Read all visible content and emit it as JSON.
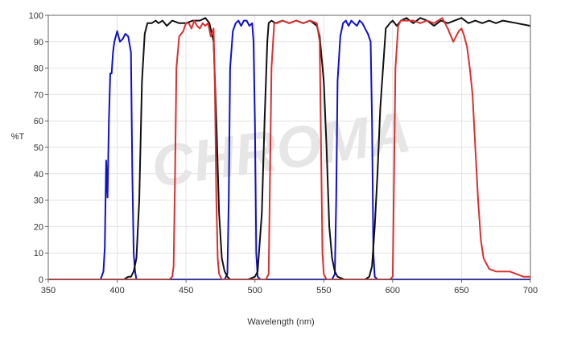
{
  "chart_data": {
    "type": "line",
    "watermark": "CHROMA",
    "xlabel": "Wavelength (nm)",
    "ylabel": "%T",
    "xlim": [
      350,
      700
    ],
    "ylim": [
      0,
      100
    ],
    "x_ticks": [
      350,
      400,
      450,
      500,
      550,
      600,
      650,
      700
    ],
    "y_ticks": [
      0,
      10,
      20,
      30,
      40,
      50,
      60,
      70,
      80,
      90,
      100
    ],
    "grid": true,
    "legend": "none",
    "series": [
      {
        "color": "#1010cc",
        "points": [
          [
            350,
            0
          ],
          [
            388,
            0
          ],
          [
            390,
            3
          ],
          [
            391,
            12
          ],
          [
            392,
            45
          ],
          [
            393,
            31
          ],
          [
            394,
            60
          ],
          [
            395,
            78
          ],
          [
            396,
            78
          ],
          [
            397,
            86
          ],
          [
            398,
            90
          ],
          [
            400,
            94
          ],
          [
            402,
            90
          ],
          [
            404,
            91
          ],
          [
            406,
            93
          ],
          [
            408,
            92
          ],
          [
            410,
            86
          ],
          [
            411,
            40
          ],
          [
            412,
            10
          ],
          [
            413,
            3
          ],
          [
            414,
            0
          ],
          [
            478,
            0
          ],
          [
            480,
            2
          ],
          [
            481,
            30
          ],
          [
            482,
            80
          ],
          [
            484,
            94
          ],
          [
            486,
            97
          ],
          [
            488,
            98
          ],
          [
            490,
            96
          ],
          [
            492,
            98
          ],
          [
            494,
            98
          ],
          [
            496,
            96
          ],
          [
            498,
            97
          ],
          [
            499,
            90
          ],
          [
            500,
            60
          ],
          [
            501,
            10
          ],
          [
            502,
            1
          ],
          [
            504,
            0
          ],
          [
            556,
            0
          ],
          [
            558,
            2
          ],
          [
            559,
            30
          ],
          [
            560,
            75
          ],
          [
            562,
            92
          ],
          [
            564,
            97
          ],
          [
            566,
            98
          ],
          [
            568,
            96
          ],
          [
            570,
            98
          ],
          [
            572,
            97
          ],
          [
            574,
            96
          ],
          [
            576,
            98
          ],
          [
            578,
            97
          ],
          [
            580,
            95
          ],
          [
            582,
            93
          ],
          [
            584,
            90
          ],
          [
            585,
            60
          ],
          [
            586,
            10
          ],
          [
            587,
            1
          ],
          [
            589,
            0
          ],
          [
            700,
            0
          ]
        ]
      },
      {
        "color": "#111111",
        "points": [
          [
            350,
            0
          ],
          [
            405,
            0
          ],
          [
            408,
            1
          ],
          [
            410,
            1
          ],
          [
            412,
            3
          ],
          [
            414,
            8
          ],
          [
            416,
            30
          ],
          [
            418,
            75
          ],
          [
            420,
            93
          ],
          [
            422,
            97
          ],
          [
            425,
            97
          ],
          [
            428,
            98
          ],
          [
            430,
            97
          ],
          [
            433,
            98
          ],
          [
            436,
            96
          ],
          [
            440,
            98
          ],
          [
            445,
            97
          ],
          [
            450,
            97
          ],
          [
            455,
            98
          ],
          [
            460,
            98
          ],
          [
            464,
            99
          ],
          [
            467,
            97
          ],
          [
            470,
            90
          ],
          [
            472,
            60
          ],
          [
            474,
            25
          ],
          [
            476,
            8
          ],
          [
            478,
            3
          ],
          [
            480,
            1
          ],
          [
            482,
            0
          ],
          [
            495,
            0
          ],
          [
            500,
            1
          ],
          [
            502,
            3
          ],
          [
            505,
            25
          ],
          [
            507,
            60
          ],
          [
            509,
            90
          ],
          [
            510,
            97
          ],
          [
            512,
            98
          ],
          [
            515,
            97
          ],
          [
            520,
            98
          ],
          [
            525,
            97
          ],
          [
            530,
            98
          ],
          [
            535,
            97
          ],
          [
            540,
            98
          ],
          [
            545,
            96
          ],
          [
            547,
            92
          ],
          [
            550,
            75
          ],
          [
            552,
            50
          ],
          [
            554,
            20
          ],
          [
            556,
            8
          ],
          [
            558,
            3
          ],
          [
            560,
            1
          ],
          [
            565,
            0
          ],
          [
            580,
            0
          ],
          [
            583,
            1
          ],
          [
            585,
            5
          ],
          [
            587,
            20
          ],
          [
            589,
            40
          ],
          [
            591,
            65
          ],
          [
            593,
            80
          ],
          [
            595,
            95
          ],
          [
            598,
            97
          ],
          [
            600,
            98
          ],
          [
            603,
            96
          ],
          [
            606,
            98
          ],
          [
            610,
            99
          ],
          [
            615,
            97
          ],
          [
            620,
            99
          ],
          [
            625,
            98
          ],
          [
            630,
            96
          ],
          [
            635,
            98
          ],
          [
            640,
            97
          ],
          [
            645,
            98
          ],
          [
            650,
            99
          ],
          [
            655,
            97
          ],
          [
            660,
            98
          ],
          [
            665,
            97
          ],
          [
            670,
            98
          ],
          [
            675,
            97
          ],
          [
            680,
            98
          ],
          [
            690,
            97
          ],
          [
            700,
            96
          ]
        ]
      },
      {
        "color": "#d93030",
        "points": [
          [
            350,
            0
          ],
          [
            438,
            0
          ],
          [
            440,
            1
          ],
          [
            441,
            5
          ],
          [
            442,
            40
          ],
          [
            443,
            80
          ],
          [
            445,
            92
          ],
          [
            448,
            94
          ],
          [
            450,
            97
          ],
          [
            452,
            97
          ],
          [
            454,
            95
          ],
          [
            456,
            98
          ],
          [
            458,
            96
          ],
          [
            460,
            95
          ],
          [
            462,
            97
          ],
          [
            464,
            96
          ],
          [
            466,
            97
          ],
          [
            468,
            92
          ],
          [
            470,
            95
          ],
          [
            471,
            70
          ],
          [
            472,
            30
          ],
          [
            473,
            8
          ],
          [
            474,
            2
          ],
          [
            476,
            0
          ],
          [
            508,
            0
          ],
          [
            510,
            2
          ],
          [
            511,
            40
          ],
          [
            512,
            80
          ],
          [
            514,
            97
          ],
          [
            516,
            97
          ],
          [
            520,
            98
          ],
          [
            525,
            97
          ],
          [
            530,
            98
          ],
          [
            535,
            97
          ],
          [
            540,
            98
          ],
          [
            545,
            97
          ],
          [
            547,
            90
          ],
          [
            548,
            50
          ],
          [
            549,
            10
          ],
          [
            550,
            2
          ],
          [
            552,
            0
          ],
          [
            598,
            0
          ],
          [
            600,
            1
          ],
          [
            601,
            40
          ],
          [
            602,
            80
          ],
          [
            604,
            96
          ],
          [
            606,
            98
          ],
          [
            610,
            98
          ],
          [
            615,
            98
          ],
          [
            620,
            97
          ],
          [
            625,
            98
          ],
          [
            630,
            97
          ],
          [
            636,
            99
          ],
          [
            640,
            95
          ],
          [
            644,
            90
          ],
          [
            648,
            94
          ],
          [
            650,
            95
          ],
          [
            652,
            92
          ],
          [
            654,
            88
          ],
          [
            656,
            80
          ],
          [
            658,
            70
          ],
          [
            660,
            50
          ],
          [
            662,
            30
          ],
          [
            664,
            15
          ],
          [
            666,
            8
          ],
          [
            670,
            4
          ],
          [
            675,
            3
          ],
          [
            680,
            3
          ],
          [
            685,
            3
          ],
          [
            690,
            2
          ],
          [
            695,
            1
          ],
          [
            700,
            1
          ]
        ]
      }
    ]
  }
}
